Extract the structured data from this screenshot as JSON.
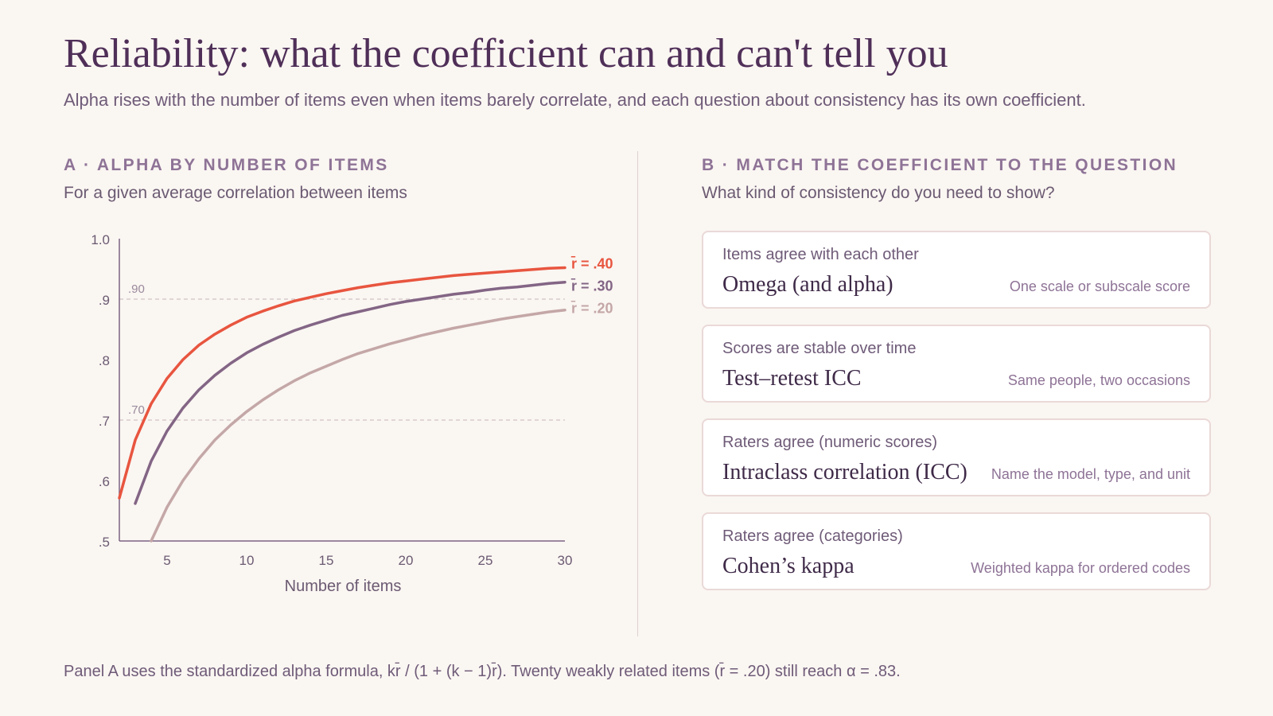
{
  "header": {
    "title": "Reliability: what the coefficient can and can't tell you",
    "subtitle": "Alpha rises with the number of items even when items barely correlate, and each question about consistency has its own coefficient."
  },
  "panel_a": {
    "heading": "A · ALPHA BY NUMBER OF ITEMS",
    "subheading": "For a given average correlation between items"
  },
  "panel_b": {
    "heading": "B · MATCH THE COEFFICIENT TO THE QUESTION",
    "subheading": "What kind of consistency do you need to show?",
    "cards": [
      {
        "question": "Items agree with each other",
        "coefficient": "Omega (and alpha)",
        "note": "One scale or subscale score"
      },
      {
        "question": "Scores are stable over time",
        "coefficient": "Test–retest ICC",
        "note": "Same people, two occasions"
      },
      {
        "question": "Raters agree (numeric scores)",
        "coefficient": "Intraclass correlation (ICC)",
        "note": "Name the model, type, and unit"
      },
      {
        "question": "Raters agree (categories)",
        "coefficient": "Cohen’s kappa",
        "note": "Weighted kappa for ordered codes"
      }
    ]
  },
  "footnote": "Panel A uses the standardized alpha formula, kr̄ / (1 + (k − 1)r̄). Twenty weakly related items (r̄ = .20) still reach α = .83.",
  "chart_data": {
    "type": "line",
    "xlabel": "Number of items",
    "ylabel": "",
    "xlim": [
      2,
      30
    ],
    "ylim": [
      0.5,
      1.0
    ],
    "x_ticks": [
      5,
      10,
      15,
      20,
      25,
      30
    ],
    "y_ticks": [
      {
        "value": 0.5,
        "label": ".5"
      },
      {
        "value": 0.6,
        "label": ".6"
      },
      {
        "value": 0.7,
        "label": ".7"
      },
      {
        "value": 0.8,
        "label": ".8"
      },
      {
        "value": 0.9,
        "label": ".9"
      },
      {
        "value": 1.0,
        "label": "1.0"
      }
    ],
    "reference_lines": [
      {
        "value": 0.9,
        "label": ".90"
      },
      {
        "value": 0.7,
        "label": ".70"
      }
    ],
    "grid": false,
    "legend": "direct labels at line ends",
    "series": [
      {
        "name": "r̄ = .40",
        "r": 0.4,
        "color": "#e8553f",
        "x": [
          2,
          3,
          4,
          5,
          6,
          7,
          8,
          9,
          10,
          11,
          12,
          13,
          14,
          15,
          16,
          17,
          18,
          19,
          20,
          21,
          22,
          23,
          24,
          25,
          26,
          27,
          28,
          29,
          30
        ],
        "y": [
          0.571,
          0.667,
          0.727,
          0.769,
          0.8,
          0.824,
          0.842,
          0.857,
          0.87,
          0.88,
          0.889,
          0.897,
          0.903,
          0.909,
          0.914,
          0.919,
          0.923,
          0.927,
          0.93,
          0.933,
          0.936,
          0.939,
          0.941,
          0.943,
          0.945,
          0.947,
          0.949,
          0.951,
          0.952
        ]
      },
      {
        "name": "r̄ = .30",
        "r": 0.3,
        "color": "#836585",
        "x": [
          3,
          4,
          5,
          6,
          7,
          8,
          9,
          10,
          11,
          12,
          13,
          14,
          15,
          16,
          17,
          18,
          19,
          20,
          21,
          22,
          23,
          24,
          25,
          26,
          27,
          28,
          29,
          30
        ],
        "y": [
          0.562,
          0.632,
          0.682,
          0.72,
          0.75,
          0.774,
          0.794,
          0.811,
          0.825,
          0.837,
          0.848,
          0.857,
          0.865,
          0.873,
          0.879,
          0.885,
          0.891,
          0.896,
          0.9,
          0.904,
          0.908,
          0.911,
          0.915,
          0.918,
          0.92,
          0.923,
          0.926,
          0.928
        ]
      },
      {
        "name": "r̄ = .20",
        "r": 0.2,
        "color": "#c4a7a7",
        "x": [
          4,
          5,
          6,
          7,
          8,
          9,
          10,
          11,
          12,
          13,
          14,
          15,
          16,
          17,
          18,
          19,
          20,
          21,
          22,
          23,
          24,
          25,
          26,
          27,
          28,
          29,
          30
        ],
        "y": [
          0.5,
          0.556,
          0.6,
          0.636,
          0.667,
          0.692,
          0.714,
          0.733,
          0.75,
          0.765,
          0.778,
          0.789,
          0.8,
          0.81,
          0.818,
          0.826,
          0.833,
          0.84,
          0.846,
          0.852,
          0.857,
          0.862,
          0.867,
          0.871,
          0.875,
          0.879,
          0.882
        ]
      }
    ]
  }
}
